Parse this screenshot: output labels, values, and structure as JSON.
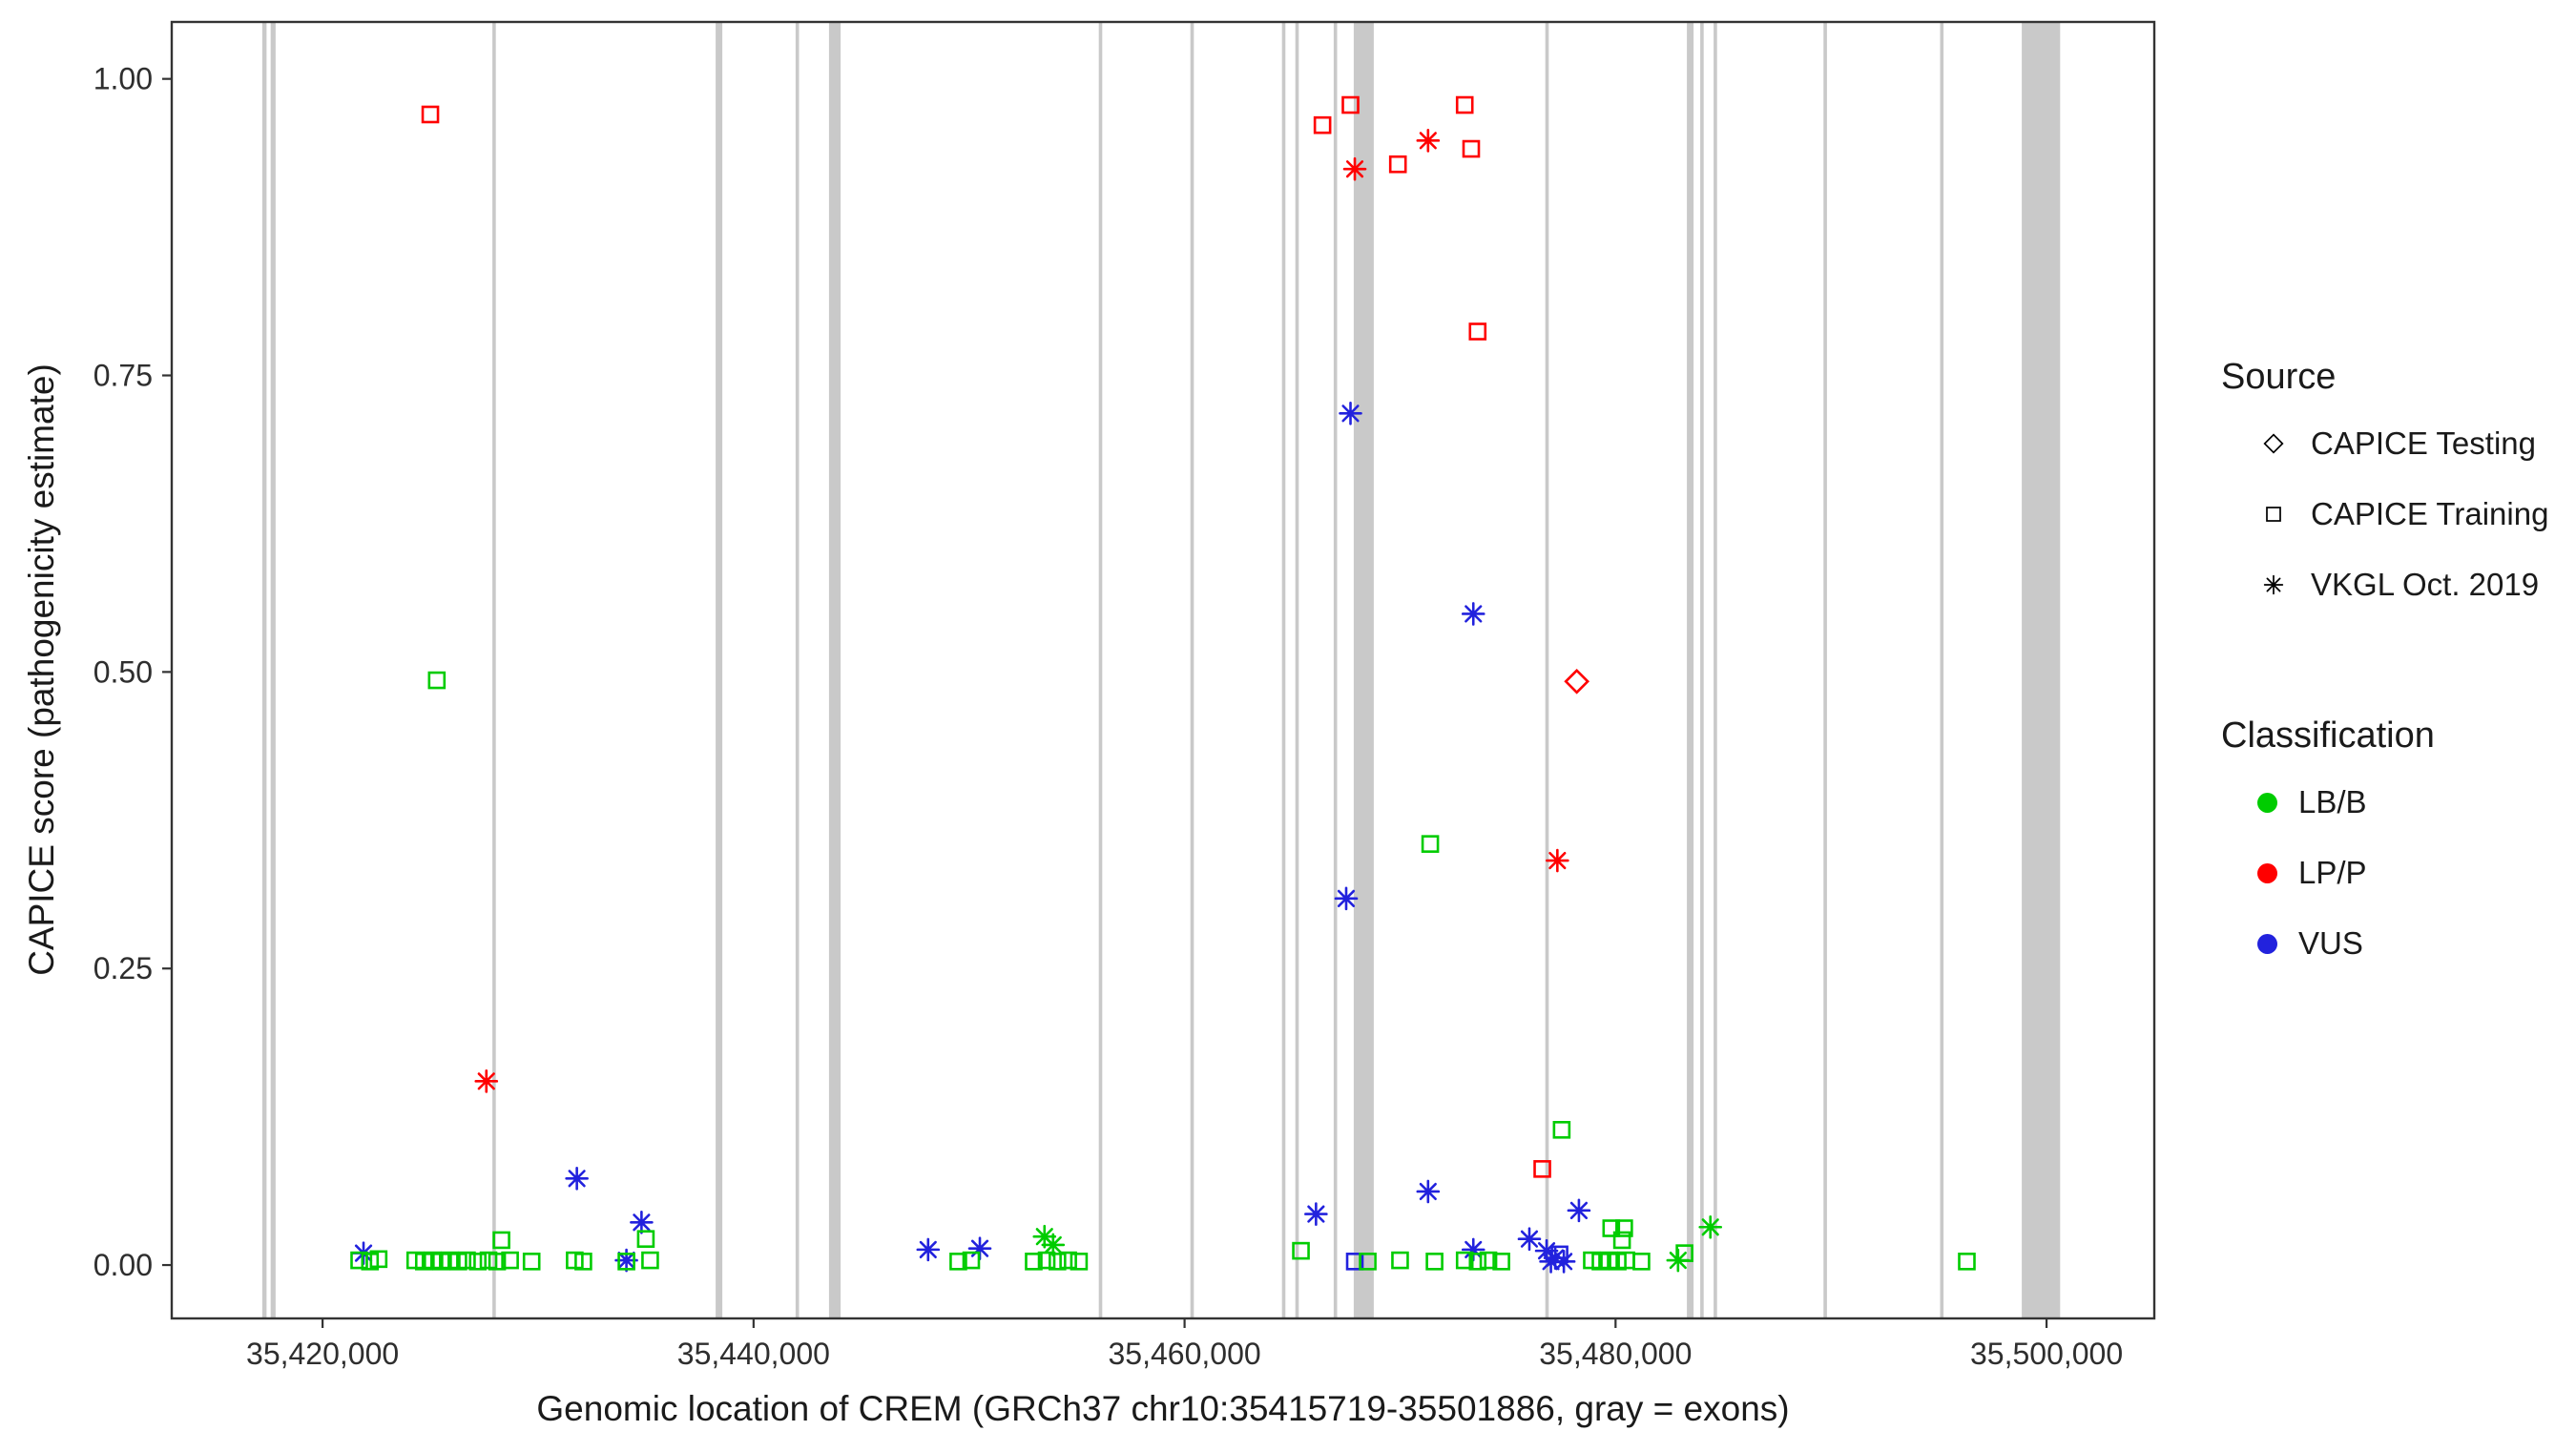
{
  "legend": {
    "source": {
      "title": "Source",
      "items": [
        {
          "label": "CAPICE Testing",
          "shape": "diamond"
        },
        {
          "label": "CAPICE Training",
          "shape": "square"
        },
        {
          "label": "VKGL Oct. 2019",
          "shape": "asterisk"
        }
      ]
    },
    "classification": {
      "title": "Classification",
      "items": [
        {
          "label": "LB/B",
          "color": "#00CC00"
        },
        {
          "label": "LP/P",
          "color": "#FF0000"
        },
        {
          "label": "VUS",
          "color": "#2222DD"
        }
      ]
    }
  },
  "chart_data": {
    "type": "scatter",
    "title": "",
    "xlabel": "Genomic location of CREM (GRCh37 chr10:35415719-35501886, gray = exons)",
    "ylabel": "CAPICE score (pathogenicity estimate)",
    "xlim": [
      35413000,
      35505000
    ],
    "ylim": [
      -0.045,
      1.048
    ],
    "grid": false,
    "legend_position": "right",
    "x_ticks": [
      {
        "value": 35420000,
        "label": "35,420,000"
      },
      {
        "value": 35440000,
        "label": "35,440,000"
      },
      {
        "value": 35460000,
        "label": "35,460,000"
      },
      {
        "value": 35480000,
        "label": "35,480,000"
      },
      {
        "value": 35500000,
        "label": "35,500,000"
      }
    ],
    "y_ticks": [
      {
        "value": 0.0,
        "label": "0.00"
      },
      {
        "value": 0.25,
        "label": "0.25"
      },
      {
        "value": 0.5,
        "label": "0.50"
      },
      {
        "value": 0.75,
        "label": "0.75"
      },
      {
        "value": 1.0,
        "label": "1.00"
      }
    ],
    "exon_color": "#C9C9C9",
    "exons": [
      {
        "start": 35417200,
        "end": 35417400
      },
      {
        "start": 35417590,
        "end": 35417820
      },
      {
        "start": 35427880,
        "end": 35428040
      },
      {
        "start": 35438240,
        "end": 35438550
      },
      {
        "start": 35441950,
        "end": 35442110
      },
      {
        "start": 35443500,
        "end": 35444040
      },
      {
        "start": 35456020,
        "end": 35456180
      },
      {
        "start": 35460270,
        "end": 35460430
      },
      {
        "start": 35464520,
        "end": 35464680
      },
      {
        "start": 35465140,
        "end": 35465300
      },
      {
        "start": 35466920,
        "end": 35467080
      },
      {
        "start": 35467850,
        "end": 35468780
      },
      {
        "start": 35476740,
        "end": 35476900
      },
      {
        "start": 35483310,
        "end": 35483620
      },
      {
        "start": 35483930,
        "end": 35484090
      },
      {
        "start": 35484550,
        "end": 35484710
      },
      {
        "start": 35489650,
        "end": 35489810
      },
      {
        "start": 35495060,
        "end": 35495220
      },
      {
        "start": 35498850,
        "end": 35500630
      }
    ],
    "classification_colors": {
      "LB/B": "#00CC00",
      "LP/P": "#FF0000",
      "VUS": "#2222DD"
    },
    "source_shapes": {
      "CAPICE Testing": "diamond",
      "CAPICE Training": "square",
      "VKGL Oct. 2019": "asterisk"
    },
    "points": [
      {
        "pos": 35425000,
        "score": 0.97,
        "classification": "LP/P",
        "source": "CAPICE Training"
      },
      {
        "pos": 35427600,
        "score": 0.155,
        "classification": "LP/P",
        "source": "VKGL Oct. 2019"
      },
      {
        "pos": 35466400,
        "score": 0.961,
        "classification": "LP/P",
        "source": "CAPICE Training"
      },
      {
        "pos": 35467700,
        "score": 0.978,
        "classification": "LP/P",
        "source": "CAPICE Training"
      },
      {
        "pos": 35467900,
        "score": 0.924,
        "classification": "LP/P",
        "source": "VKGL Oct. 2019"
      },
      {
        "pos": 35469900,
        "score": 0.928,
        "classification": "LP/P",
        "source": "CAPICE Training"
      },
      {
        "pos": 35471300,
        "score": 0.948,
        "classification": "LP/P",
        "source": "VKGL Oct. 2019"
      },
      {
        "pos": 35473000,
        "score": 0.978,
        "classification": "LP/P",
        "source": "CAPICE Training"
      },
      {
        "pos": 35473300,
        "score": 0.941,
        "classification": "LP/P",
        "source": "CAPICE Training"
      },
      {
        "pos": 35473600,
        "score": 0.787,
        "classification": "LP/P",
        "source": "CAPICE Training"
      },
      {
        "pos": 35476600,
        "score": 0.081,
        "classification": "LP/P",
        "source": "CAPICE Training"
      },
      {
        "pos": 35477300,
        "score": 0.341,
        "classification": "LP/P",
        "source": "VKGL Oct. 2019"
      },
      {
        "pos": 35478200,
        "score": 0.492,
        "classification": "LP/P",
        "source": "CAPICE Testing"
      },
      {
        "pos": 35467700,
        "score": 0.718,
        "classification": "VUS",
        "source": "VKGL Oct. 2019"
      },
      {
        "pos": 35473400,
        "score": 0.549,
        "classification": "VUS",
        "source": "VKGL Oct. 2019"
      },
      {
        "pos": 35467500,
        "score": 0.309,
        "classification": "VUS",
        "source": "VKGL Oct. 2019"
      },
      {
        "pos": 35431800,
        "score": 0.073,
        "classification": "VUS",
        "source": "VKGL Oct. 2019"
      },
      {
        "pos": 35434800,
        "score": 0.036,
        "classification": "VUS",
        "source": "VKGL Oct. 2019"
      },
      {
        "pos": 35466100,
        "score": 0.043,
        "classification": "VUS",
        "source": "VKGL Oct. 2019"
      },
      {
        "pos": 35471300,
        "score": 0.062,
        "classification": "VUS",
        "source": "VKGL Oct. 2019"
      },
      {
        "pos": 35478300,
        "score": 0.046,
        "classification": "VUS",
        "source": "VKGL Oct. 2019"
      },
      {
        "pos": 35476000,
        "score": 0.022,
        "classification": "VUS",
        "source": "VKGL Oct. 2019"
      },
      {
        "pos": 35421900,
        "score": 0.01,
        "classification": "VUS",
        "source": "VKGL Oct. 2019"
      },
      {
        "pos": 35448100,
        "score": 0.013,
        "classification": "VUS",
        "source": "VKGL Oct. 2019"
      },
      {
        "pos": 35450500,
        "score": 0.014,
        "classification": "VUS",
        "source": "VKGL Oct. 2019"
      },
      {
        "pos": 35434100,
        "score": 0.004,
        "classification": "VUS",
        "source": "VKGL Oct. 2019"
      },
      {
        "pos": 35473400,
        "score": 0.013,
        "classification": "VUS",
        "source": "VKGL Oct. 2019"
      },
      {
        "pos": 35476800,
        "score": 0.012,
        "classification": "VUS",
        "source": "VKGL Oct. 2019"
      },
      {
        "pos": 35477000,
        "score": 0.003,
        "classification": "VUS",
        "source": "VKGL Oct. 2019"
      },
      {
        "pos": 35477200,
        "score": 0.006,
        "classification": "VUS",
        "source": "VKGL Oct. 2019"
      },
      {
        "pos": 35477600,
        "score": 0.003,
        "classification": "VUS",
        "source": "VKGL Oct. 2019"
      },
      {
        "pos": 35467900,
        "score": 0.003,
        "classification": "VUS",
        "source": "CAPICE Training"
      },
      {
        "pos": 35477400,
        "score": 0.009,
        "classification": "VUS",
        "source": "CAPICE Training"
      },
      {
        "pos": 35425300,
        "score": 0.493,
        "classification": "LB/B",
        "source": "CAPICE Training"
      },
      {
        "pos": 35471400,
        "score": 0.355,
        "classification": "LB/B",
        "source": "CAPICE Training"
      },
      {
        "pos": 35477500,
        "score": 0.114,
        "classification": "LB/B",
        "source": "CAPICE Training"
      },
      {
        "pos": 35453500,
        "score": 0.024,
        "classification": "LB/B",
        "source": "VKGL Oct. 2019"
      },
      {
        "pos": 35453900,
        "score": 0.017,
        "classification": "LB/B",
        "source": "VKGL Oct. 2019"
      },
      {
        "pos": 35428300,
        "score": 0.021,
        "classification": "LB/B",
        "source": "CAPICE Training"
      },
      {
        "pos": 35435000,
        "score": 0.022,
        "classification": "LB/B",
        "source": "CAPICE Training"
      },
      {
        "pos": 35479800,
        "score": 0.031,
        "classification": "LB/B",
        "source": "CAPICE Training"
      },
      {
        "pos": 35480400,
        "score": 0.031,
        "classification": "LB/B",
        "source": "CAPICE Training"
      },
      {
        "pos": 35480300,
        "score": 0.021,
        "classification": "LB/B",
        "source": "CAPICE Training"
      },
      {
        "pos": 35484400,
        "score": 0.032,
        "classification": "LB/B",
        "source": "VKGL Oct. 2019"
      },
      {
        "pos": 35483200,
        "score": 0.01,
        "classification": "LB/B",
        "source": "CAPICE Training"
      },
      {
        "pos": 35482900,
        "score": 0.004,
        "classification": "LB/B",
        "source": "VKGL Oct. 2019"
      },
      {
        "pos": 35496300,
        "score": 0.003,
        "classification": "LB/B",
        "source": "CAPICE Training"
      },
      {
        "pos": 35465400,
        "score": 0.012,
        "classification": "LB/B",
        "source": "CAPICE Training"
      },
      {
        "pos": 35421700,
        "score": 0.004,
        "classification": "LB/B",
        "source": "CAPICE Training"
      },
      {
        "pos": 35422200,
        "score": 0.003,
        "classification": "LB/B",
        "source": "CAPICE Training"
      },
      {
        "pos": 35422600,
        "score": 0.005,
        "classification": "LB/B",
        "source": "CAPICE Training"
      },
      {
        "pos": 35424300,
        "score": 0.004,
        "classification": "LB/B",
        "source": "CAPICE Training"
      },
      {
        "pos": 35424700,
        "score": 0.003,
        "classification": "LB/B",
        "source": "CAPICE Training"
      },
      {
        "pos": 35425100,
        "score": 0.004,
        "classification": "LB/B",
        "source": "CAPICE Training"
      },
      {
        "pos": 35425500,
        "score": 0.003,
        "classification": "LB/B",
        "source": "CAPICE Training"
      },
      {
        "pos": 35425900,
        "score": 0.004,
        "classification": "LB/B",
        "source": "CAPICE Training"
      },
      {
        "pos": 35426300,
        "score": 0.003,
        "classification": "LB/B",
        "source": "CAPICE Training"
      },
      {
        "pos": 35426700,
        "score": 0.004,
        "classification": "LB/B",
        "source": "CAPICE Training"
      },
      {
        "pos": 35427200,
        "score": 0.003,
        "classification": "LB/B",
        "source": "CAPICE Training"
      },
      {
        "pos": 35427700,
        "score": 0.004,
        "classification": "LB/B",
        "source": "CAPICE Training"
      },
      {
        "pos": 35428100,
        "score": 0.003,
        "classification": "LB/B",
        "source": "CAPICE Training"
      },
      {
        "pos": 35428700,
        "score": 0.004,
        "classification": "LB/B",
        "source": "CAPICE Training"
      },
      {
        "pos": 35429700,
        "score": 0.003,
        "classification": "LB/B",
        "source": "CAPICE Training"
      },
      {
        "pos": 35431700,
        "score": 0.004,
        "classification": "LB/B",
        "source": "CAPICE Training"
      },
      {
        "pos": 35432100,
        "score": 0.003,
        "classification": "LB/B",
        "source": "CAPICE Training"
      },
      {
        "pos": 35434100,
        "score": 0.003,
        "classification": "LB/B",
        "source": "CAPICE Training"
      },
      {
        "pos": 35435200,
        "score": 0.004,
        "classification": "LB/B",
        "source": "CAPICE Training"
      },
      {
        "pos": 35449500,
        "score": 0.003,
        "classification": "LB/B",
        "source": "CAPICE Training"
      },
      {
        "pos": 35450100,
        "score": 0.004,
        "classification": "LB/B",
        "source": "CAPICE Training"
      },
      {
        "pos": 35453000,
        "score": 0.003,
        "classification": "LB/B",
        "source": "CAPICE Training"
      },
      {
        "pos": 35453600,
        "score": 0.004,
        "classification": "LB/B",
        "source": "CAPICE Training"
      },
      {
        "pos": 35454100,
        "score": 0.003,
        "classification": "LB/B",
        "source": "CAPICE Training"
      },
      {
        "pos": 35454600,
        "score": 0.004,
        "classification": "LB/B",
        "source": "CAPICE Training"
      },
      {
        "pos": 35455100,
        "score": 0.003,
        "classification": "LB/B",
        "source": "CAPICE Training"
      },
      {
        "pos": 35468500,
        "score": 0.003,
        "classification": "LB/B",
        "source": "CAPICE Training"
      },
      {
        "pos": 35470000,
        "score": 0.004,
        "classification": "LB/B",
        "source": "CAPICE Training"
      },
      {
        "pos": 35471600,
        "score": 0.003,
        "classification": "LB/B",
        "source": "CAPICE Training"
      },
      {
        "pos": 35473000,
        "score": 0.004,
        "classification": "LB/B",
        "source": "CAPICE Training"
      },
      {
        "pos": 35473600,
        "score": 0.003,
        "classification": "LB/B",
        "source": "CAPICE Training"
      },
      {
        "pos": 35474100,
        "score": 0.004,
        "classification": "LB/B",
        "source": "CAPICE Training"
      },
      {
        "pos": 35474700,
        "score": 0.003,
        "classification": "LB/B",
        "source": "CAPICE Training"
      },
      {
        "pos": 35478900,
        "score": 0.004,
        "classification": "LB/B",
        "source": "CAPICE Training"
      },
      {
        "pos": 35479300,
        "score": 0.003,
        "classification": "LB/B",
        "source": "CAPICE Training"
      },
      {
        "pos": 35479700,
        "score": 0.004,
        "classification": "LB/B",
        "source": "CAPICE Training"
      },
      {
        "pos": 35480100,
        "score": 0.003,
        "classification": "LB/B",
        "source": "CAPICE Training"
      },
      {
        "pos": 35480500,
        "score": 0.004,
        "classification": "LB/B",
        "source": "CAPICE Training"
      },
      {
        "pos": 35481200,
        "score": 0.003,
        "classification": "LB/B",
        "source": "CAPICE Training"
      }
    ]
  }
}
